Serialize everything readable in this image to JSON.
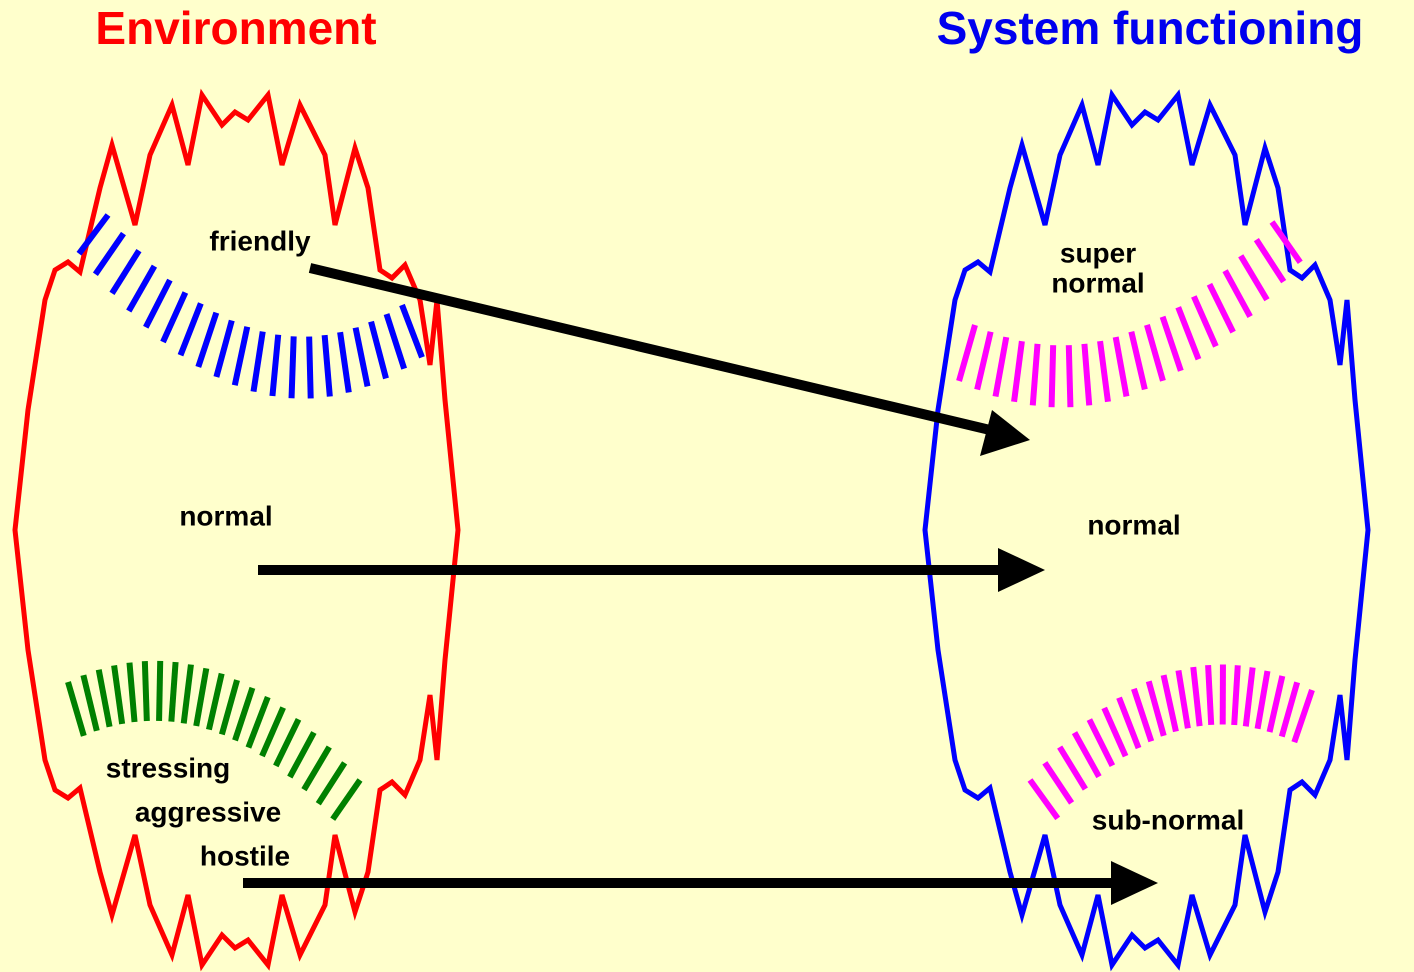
{
  "left": {
    "title": "Environment",
    "labels": [
      "friendly",
      "normal",
      "stressing",
      "aggressive",
      "hostile"
    ]
  },
  "right": {
    "title": "System functioning",
    "labels": [
      "super",
      "normal",
      "normal",
      "sub-normal"
    ]
  }
}
